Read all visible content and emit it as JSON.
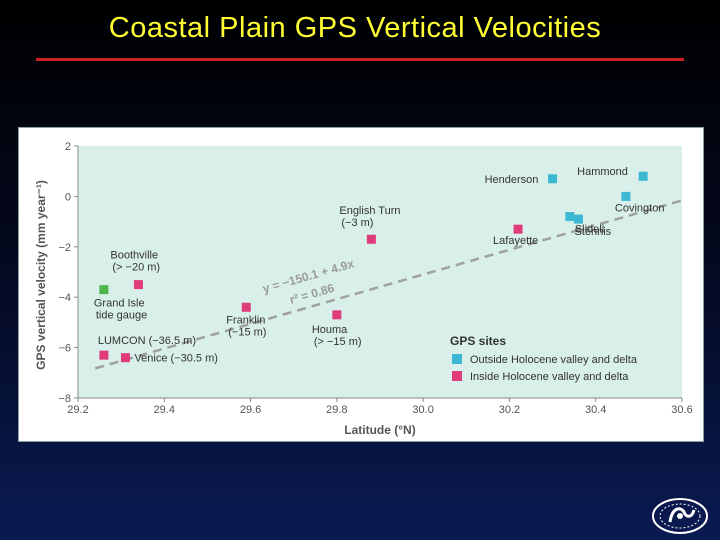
{
  "slide": {
    "title": "Coastal Plain GPS Vertical Velocities"
  },
  "colors": {
    "title": "#ffff33",
    "rule": "#cc1f1f",
    "plot_bg": "#d9efe9",
    "outside": "#3cb8d4",
    "inside": "#e03c7c",
    "tide": "#4cb84c",
    "trend": "#a0a0a0",
    "axis_text": "#555555"
  },
  "chart_data": {
    "type": "scatter",
    "title": "",
    "xlabel": "Latitude (°N)",
    "ylabel": "GPS vertical velocity (mm year⁻¹)",
    "xlim": [
      29.2,
      30.6
    ],
    "ylim": [
      -8,
      2
    ],
    "x_ticks": [
      "29.2",
      "29.4",
      "29.6",
      "29.8",
      "30.0",
      "30.2",
      "30.4",
      "30.6"
    ],
    "y_ticks": [
      "2",
      "0",
      "−2",
      "−4",
      "−6",
      "−8"
    ],
    "grid": false,
    "trend_line": {
      "equation": "y = −150.1 + 4.9x",
      "r_squared": "r² = 0.86",
      "slope": 4.9,
      "intercept": -150.1,
      "x_range": [
        29.24,
        30.6
      ]
    },
    "legend": {
      "title": "GPS sites",
      "placement": "bottom-right",
      "entries": [
        {
          "label": "Outside Holocene valley and delta",
          "group": "outside"
        },
        {
          "label": "Inside Holocene valley and delta",
          "group": "inside"
        }
      ]
    },
    "points": [
      {
        "x": 30.51,
        "y": 0.8,
        "group": "outside",
        "labels": [
          "Hammond"
        ]
      },
      {
        "x": 30.47,
        "y": 0.0,
        "group": "outside",
        "labels": [
          "Covington"
        ]
      },
      {
        "x": 30.3,
        "y": 0.7,
        "group": "outside",
        "labels": [
          "Henderson"
        ]
      },
      {
        "x": 30.34,
        "y": -0.8,
        "group": "outside",
        "labels": [
          "Slidell"
        ]
      },
      {
        "x": 30.36,
        "y": -0.9,
        "group": "outside",
        "labels": [
          "Stennis"
        ]
      },
      {
        "x": 30.22,
        "y": -1.3,
        "group": "inside",
        "labels": [
          "Lafayette"
        ]
      },
      {
        "x": 29.88,
        "y": -1.7,
        "group": "inside",
        "labels": [
          "English Turn",
          "(−3 m)"
        ]
      },
      {
        "x": 29.34,
        "y": -3.5,
        "group": "inside",
        "labels": [
          "Boothville",
          "(> −20 m)"
        ]
      },
      {
        "x": 29.59,
        "y": -4.4,
        "group": "inside",
        "labels": [
          "Franklin",
          "(−15 m)"
        ]
      },
      {
        "x": 29.8,
        "y": -4.7,
        "group": "inside",
        "labels": [
          "Houma",
          "(> −15 m)"
        ]
      },
      {
        "x": 29.26,
        "y": -3.7,
        "group": "tide",
        "labels": [
          "Grand Isle",
          "tide gauge"
        ]
      },
      {
        "x": 29.26,
        "y": -6.3,
        "group": "inside",
        "labels": [
          "LUMCON (−36.5 m)"
        ]
      },
      {
        "x": 29.31,
        "y": -6.4,
        "group": "inside",
        "labels": [
          "Venice (−30.5 m)"
        ]
      }
    ]
  }
}
